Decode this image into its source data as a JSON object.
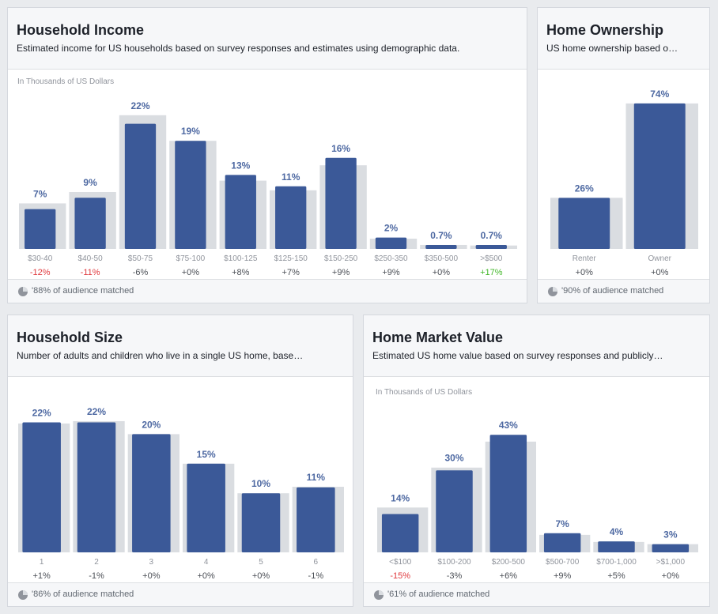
{
  "colors": {
    "bar": "#3b5998",
    "benchmark": "#dadde1",
    "value_label": "#4e69a2",
    "category_label": "#90949c",
    "change_positive": "#4b4f56",
    "change_negative": "#e0393e",
    "change_highlight": "#42b72a"
  },
  "panels": {
    "household_income": {
      "title": "Household Income",
      "subtitle": "Estimated income for US households based on survey responses and estimates using demographic data.",
      "footer": "'88% of audience matched",
      "footer_icon": "pie-chart-icon"
    },
    "home_ownership": {
      "title": "Home Ownership",
      "subtitle": "US home ownership based o…",
      "footer": "'90% of audience matched",
      "footer_icon": "pie-chart-icon"
    },
    "household_size": {
      "title": "Household Size",
      "subtitle": "Number of adults and children who live in a single US home, base…",
      "footer": "'86% of audience matched",
      "footer_icon": "pie-chart-icon"
    },
    "home_market_value": {
      "title": "Home Market Value",
      "subtitle": "Estimated US home value based on survey responses and publicly…",
      "footer": "'61% of audience matched",
      "footer_icon": "pie-chart-icon"
    }
  },
  "chart_data": [
    {
      "id": "household_income",
      "type": "bar",
      "ylabel": "In Thousands of US Dollars",
      "categories": [
        "$30-40",
        "$40-50",
        "$50-75",
        "$75-100",
        "$100-125",
        "$125-150",
        "$150-250",
        "$250-350",
        "$350-500",
        ">$500"
      ],
      "series": [
        {
          "values": [
            7,
            9,
            22,
            19,
            13,
            11,
            16,
            2,
            0.7,
            0.7
          ]
        },
        {
          "values": [
            8,
            10,
            23.5,
            19,
            12,
            10.3,
            14.7,
            1.8,
            0.7,
            0.6
          ]
        }
      ],
      "value_labels": [
        "7%",
        "9%",
        "22%",
        "19%",
        "13%",
        "11%",
        "16%",
        "2%",
        "0.7%",
        "0.7%"
      ],
      "changes": [
        "-12%",
        "-11%",
        "-6%",
        "+0%",
        "+8%",
        "+7%",
        "+9%",
        "+9%",
        "+0%",
        "+17%"
      ],
      "change_tones": [
        "negative",
        "negative",
        "neutral",
        "neutral",
        "neutral",
        "neutral",
        "neutral",
        "neutral",
        "neutral",
        "highlight"
      ],
      "ylim": [
        0,
        25
      ]
    },
    {
      "id": "home_ownership",
      "type": "bar",
      "categories": [
        "Renter",
        "Owner"
      ],
      "series": [
        {
          "values": [
            26,
            74
          ]
        },
        {
          "values": [
            26,
            74
          ]
        }
      ],
      "value_labels": [
        "26%",
        "74%"
      ],
      "changes": [
        "+0%",
        "+0%"
      ],
      "change_tones": [
        "neutral",
        "neutral"
      ],
      "ylim": [
        0,
        80
      ]
    },
    {
      "id": "household_size",
      "type": "bar",
      "categories": [
        "1",
        "2",
        "3",
        "4",
        "5",
        "6"
      ],
      "series": [
        {
          "values": [
            22,
            22,
            20,
            15,
            10,
            11
          ]
        },
        {
          "values": [
            21.8,
            22.2,
            20,
            15,
            10,
            11.1
          ]
        }
      ],
      "value_labels": [
        "22%",
        "22%",
        "20%",
        "15%",
        "10%",
        "11%"
      ],
      "changes": [
        "+1%",
        "-1%",
        "+0%",
        "+0%",
        "+0%",
        "-1%"
      ],
      "change_tones": [
        "neutral",
        "neutral",
        "neutral",
        "neutral",
        "neutral",
        "neutral"
      ],
      "ylim": [
        0,
        25
      ]
    },
    {
      "id": "home_market_value",
      "type": "bar",
      "ylabel": "In Thousands of US Dollars",
      "categories": [
        "<$100",
        "$100-200",
        "$200-500",
        "$500-700",
        "$700-1,000",
        ">$1,000"
      ],
      "series": [
        {
          "values": [
            14,
            30,
            43,
            7,
            4,
            3
          ]
        },
        {
          "values": [
            16.4,
            31,
            40.5,
            6.4,
            3.8,
            3
          ]
        }
      ],
      "value_labels": [
        "14%",
        "30%",
        "43%",
        "7%",
        "4%",
        "3%"
      ],
      "changes": [
        "-15%",
        "-3%",
        "+6%",
        "+9%",
        "+5%",
        "+0%"
      ],
      "change_tones": [
        "negative",
        "neutral",
        "neutral",
        "neutral",
        "neutral",
        "neutral"
      ],
      "ylim": [
        0,
        50
      ]
    }
  ]
}
